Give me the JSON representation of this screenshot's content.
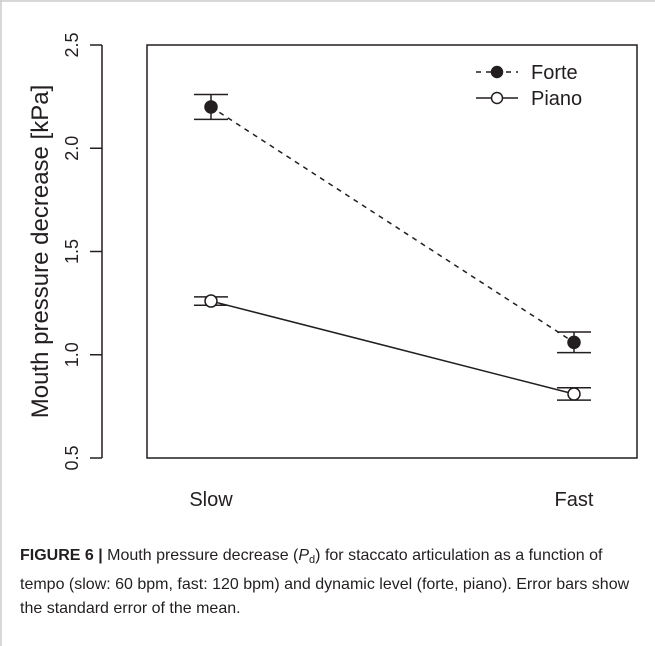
{
  "chart_data": {
    "type": "line",
    "categories": [
      "Slow",
      "Fast"
    ],
    "ylabel": "Mouth pressure decrease [kPa]",
    "ylim": [
      0.5,
      2.5
    ],
    "yticks": [
      "0.5",
      "1.0",
      "1.5",
      "2.0",
      "2.5"
    ],
    "grid": false,
    "legend_position": "top-right",
    "series": [
      {
        "name": "Forte",
        "values": [
          2.2,
          1.06
        ],
        "err": [
          0.06,
          0.05
        ],
        "line": "dashed",
        "marker": "filled-circle"
      },
      {
        "name": "Piano",
        "values": [
          1.26,
          0.81
        ],
        "err": [
          0.02,
          0.03
        ],
        "line": "solid",
        "marker": "open-circle"
      }
    ]
  },
  "caption": {
    "figure_label": "FIGURE 6 |",
    "text_before_sym": " Mouth pressure decrease (",
    "symbol_main": "P",
    "symbol_sub": "d",
    "text_after_sym": ") for staccato articulation as a function of tempo (slow: 60 bpm, fast: 120 bpm) and dynamic level (forte, piano). Error bars show the standard error of the mean."
  },
  "colors": {
    "ink": "#231f20",
    "frame": "#cccccc"
  }
}
